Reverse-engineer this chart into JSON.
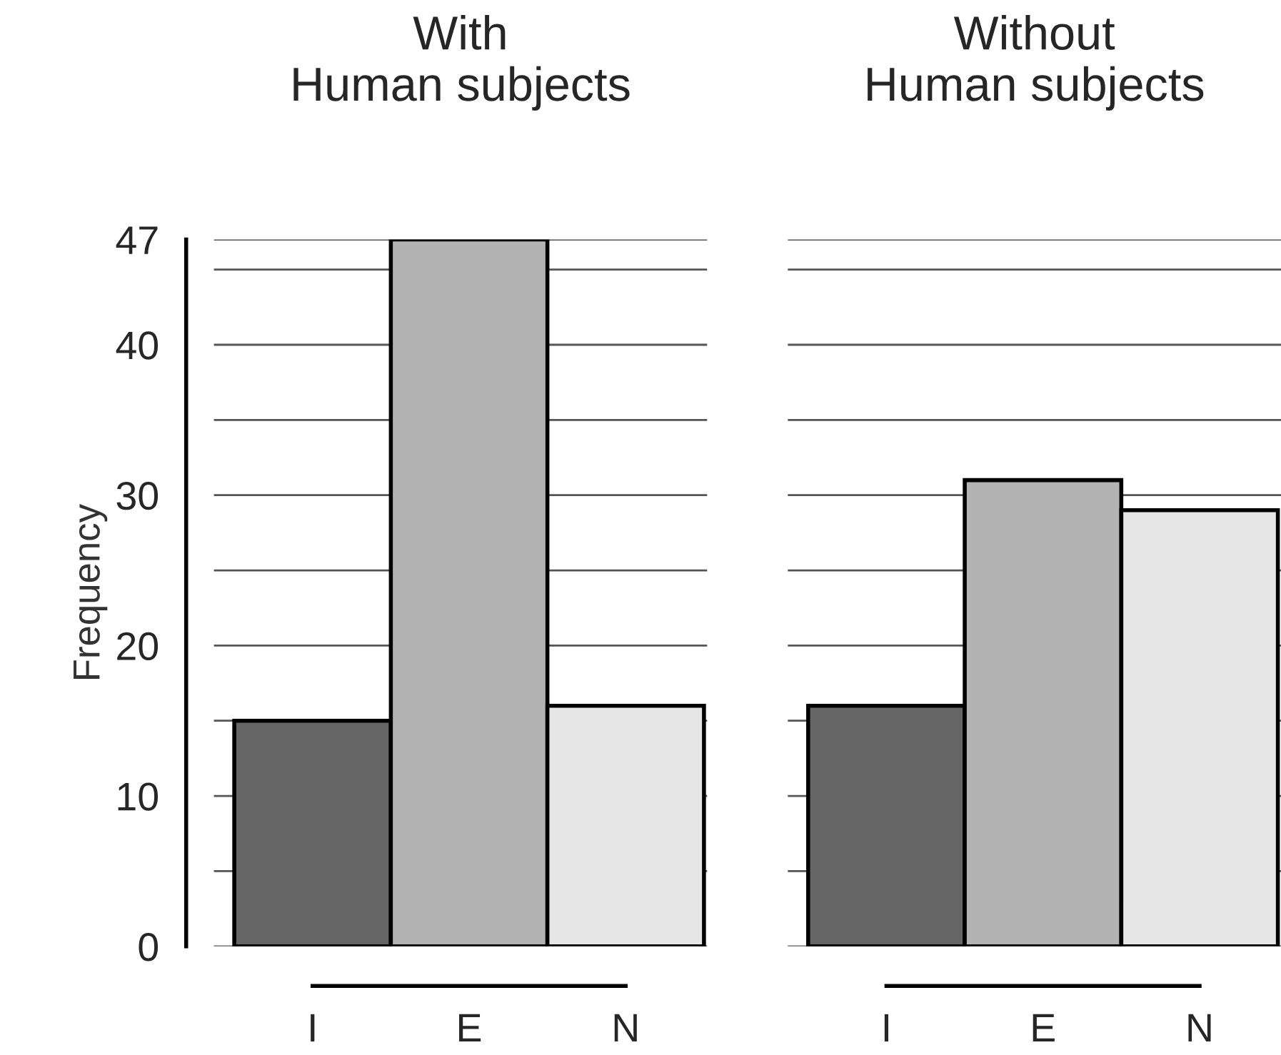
{
  "chart_data": [
    {
      "type": "bar",
      "title": "With\nHuman subjects",
      "ylabel": "Frequency",
      "categories": [
        "I",
        "E",
        "N"
      ],
      "values": [
        15,
        47,
        16
      ],
      "colors": [
        "#666666",
        "#b3b3b3",
        "#e6e6e6"
      ],
      "ylim": [
        0,
        47
      ],
      "yticks": [
        0,
        {
          "value": 5,
          "label": null
        },
        10,
        {
          "value": 15,
          "label": null
        },
        20,
        {
          "value": 25,
          "label": null
        },
        30,
        {
          "value": 35,
          "label": null
        },
        40,
        {
          "value": 45,
          "label": null
        },
        47
      ],
      "grid": "y"
    },
    {
      "type": "bar",
      "title": "Without\nHuman subjects",
      "categories": [
        "I",
        "E",
        "N"
      ],
      "values": [
        16,
        31,
        29
      ],
      "colors": [
        "#666666",
        "#b3b3b3",
        "#e6e6e6"
      ],
      "ylim": [
        0,
        47
      ],
      "yticks": [
        0,
        {
          "value": 5,
          "label": null
        },
        10,
        {
          "value": 15,
          "label": null
        },
        20,
        {
          "value": 25,
          "label": null
        },
        30,
        {
          "value": 35,
          "label": null
        },
        40,
        {
          "value": 45,
          "label": null
        },
        47
      ],
      "grid": "y",
      "tick_labels": "x"
    }
  ]
}
